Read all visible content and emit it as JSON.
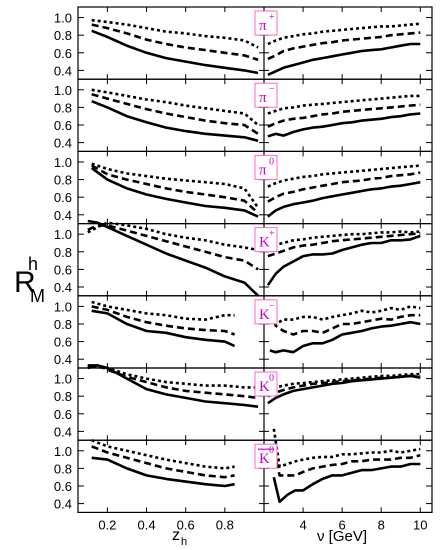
{
  "figure": {
    "ylabel_main": "R",
    "ylabel_sup": "h",
    "ylabel_sub": "M",
    "left_xlabel_main": "z",
    "left_xlabel_sub": "h",
    "right_xlabel": "ν [GeV]",
    "badge_color": "#cc00cc",
    "badge_border_color": "#ff66cc"
  },
  "chart_data": {
    "type": "line",
    "line_color": "#000000",
    "line_styles": [
      "solid",
      "dashed",
      "dotted"
    ],
    "left_axis": {
      "ticks": [
        0.2,
        0.4,
        0.6,
        0.8
      ],
      "tick_labels": [
        "0.2",
        "0.4",
        "0.6",
        "0.8"
      ],
      "xlim": [
        0.05,
        1.0
      ]
    },
    "right_axis": {
      "ticks": [
        4,
        6,
        8,
        10
      ],
      "tick_labels": [
        "4",
        "6",
        "8",
        "10"
      ],
      "xlim": [
        2.0,
        10.6
      ]
    },
    "y_ticks": [
      0.4,
      0.6,
      0.8,
      1.0
    ],
    "y_tick_labels": [
      "0.4",
      "0.6",
      "0.8",
      "1.0"
    ],
    "ylim": [
      0.3,
      1.12
    ],
    "panels": [
      {
        "hadron": "π",
        "hadron_sup": "+",
        "overline": false,
        "left": {
          "x": [
            0.12,
            0.2,
            0.3,
            0.4,
            0.5,
            0.6,
            0.7,
            0.8,
            0.9,
            0.97
          ],
          "series": [
            [
              0.85,
              0.78,
              0.68,
              0.6,
              0.54,
              0.5,
              0.46,
              0.43,
              0.4,
              0.37
            ],
            [
              0.92,
              0.88,
              0.82,
              0.75,
              0.7,
              0.66,
              0.63,
              0.6,
              0.57,
              0.52
            ],
            [
              0.97,
              0.95,
              0.92,
              0.88,
              0.84,
              0.82,
              0.79,
              0.77,
              0.74,
              0.66
            ]
          ]
        },
        "right": {
          "x": [
            2.2,
            2.6,
            3.0,
            3.5,
            4.0,
            4.5,
            5.0,
            5.5,
            6.0,
            6.5,
            7.0,
            7.5,
            8.0,
            8.5,
            9.0,
            9.5,
            10.0
          ],
          "series": [
            [
              0.35,
              0.39,
              0.43,
              0.46,
              0.49,
              0.52,
              0.54,
              0.56,
              0.58,
              0.6,
              0.62,
              0.63,
              0.64,
              0.66,
              0.68,
              0.7,
              0.7
            ],
            [
              0.53,
              0.57,
              0.62,
              0.65,
              0.67,
              0.69,
              0.71,
              0.72,
              0.74,
              0.75,
              0.76,
              0.77,
              0.78,
              0.8,
              0.81,
              0.82,
              0.83
            ],
            [
              0.7,
              0.74,
              0.77,
              0.79,
              0.81,
              0.82,
              0.84,
              0.85,
              0.86,
              0.87,
              0.88,
              0.89,
              0.9,
              0.9,
              0.91,
              0.92,
              0.93
            ]
          ]
        }
      },
      {
        "hadron": "π",
        "hadron_sup": "−",
        "overline": false,
        "left": {
          "x": [
            0.12,
            0.2,
            0.3,
            0.4,
            0.5,
            0.6,
            0.7,
            0.8,
            0.9,
            0.97
          ],
          "series": [
            [
              0.87,
              0.8,
              0.7,
              0.63,
              0.57,
              0.53,
              0.5,
              0.48,
              0.46,
              0.42
            ],
            [
              0.95,
              0.9,
              0.84,
              0.78,
              0.73,
              0.69,
              0.65,
              0.62,
              0.6,
              0.5
            ],
            [
              1.0,
              0.97,
              0.93,
              0.89,
              0.86,
              0.82,
              0.79,
              0.76,
              0.73,
              0.6
            ]
          ]
        },
        "right": {
          "x": [
            2.2,
            2.6,
            3.0,
            3.5,
            4.0,
            4.5,
            5.0,
            5.5,
            6.0,
            6.5,
            7.0,
            7.5,
            8.0,
            8.5,
            9.0,
            9.5,
            10.0
          ],
          "series": [
            [
              0.47,
              0.5,
              0.48,
              0.52,
              0.55,
              0.57,
              0.58,
              0.6,
              0.62,
              0.63,
              0.65,
              0.66,
              0.67,
              0.69,
              0.7,
              0.72,
              0.73
            ],
            [
              0.58,
              0.62,
              0.65,
              0.67,
              0.68,
              0.7,
              0.72,
              0.73,
              0.75,
              0.76,
              0.77,
              0.78,
              0.79,
              0.8,
              0.81,
              0.82,
              0.83
            ],
            [
              0.73,
              0.76,
              0.79,
              0.8,
              0.82,
              0.83,
              0.84,
              0.85,
              0.86,
              0.87,
              0.88,
              0.89,
              0.9,
              0.91,
              0.92,
              0.93,
              0.93
            ]
          ]
        }
      },
      {
        "hadron": "π",
        "hadron_sup": "0",
        "overline": false,
        "left": {
          "x": [
            0.12,
            0.2,
            0.3,
            0.4,
            0.5,
            0.6,
            0.7,
            0.8,
            0.9,
            0.97
          ],
          "series": [
            [
              0.93,
              0.8,
              0.7,
              0.63,
              0.58,
              0.54,
              0.5,
              0.48,
              0.45,
              0.38
            ],
            [
              0.96,
              0.86,
              0.8,
              0.75,
              0.7,
              0.66,
              0.63,
              0.6,
              0.56,
              0.42
            ],
            [
              0.98,
              0.92,
              0.87,
              0.84,
              0.81,
              0.79,
              0.77,
              0.75,
              0.7,
              0.48
            ]
          ]
        },
        "right": {
          "x": [
            2.2,
            2.6,
            3.0,
            3.5,
            4.0,
            4.5,
            5.0,
            5.5,
            6.0,
            6.5,
            7.0,
            7.5,
            8.0,
            8.5,
            9.0,
            9.5,
            10.0
          ],
          "series": [
            [
              0.38,
              0.45,
              0.49,
              0.52,
              0.54,
              0.56,
              0.59,
              0.61,
              0.63,
              0.65,
              0.67,
              0.69,
              0.7,
              0.72,
              0.73,
              0.75,
              0.77
            ],
            [
              0.55,
              0.6,
              0.64,
              0.66,
              0.69,
              0.71,
              0.73,
              0.75,
              0.77,
              0.78,
              0.79,
              0.81,
              0.82,
              0.84,
              0.85,
              0.86,
              0.88
            ],
            [
              0.72,
              0.76,
              0.79,
              0.81,
              0.83,
              0.84,
              0.86,
              0.87,
              0.88,
              0.89,
              0.9,
              0.91,
              0.92,
              0.93,
              0.94,
              0.95,
              0.96
            ]
          ]
        }
      },
      {
        "hadron": "K",
        "hadron_sup": "+",
        "overline": false,
        "left": {
          "x": [
            0.1,
            0.15,
            0.2,
            0.3,
            0.4,
            0.5,
            0.6,
            0.7,
            0.8,
            0.9,
            0.97
          ],
          "series": [
            [
              1.15,
              1.13,
              1.08,
              0.98,
              0.88,
              0.78,
              0.7,
              0.62,
              0.52,
              0.45,
              0.3
            ],
            [
              1.05,
              1.1,
              1.1,
              1.04,
              0.98,
              0.92,
              0.86,
              0.8,
              0.74,
              0.7,
              0.6
            ],
            [
              1.02,
              1.08,
              1.13,
              1.1,
              1.06,
              1.0,
              0.96,
              0.93,
              0.88,
              0.85,
              0.82
            ]
          ]
        },
        "right": {
          "x": [
            2.2,
            2.6,
            3.0,
            3.5,
            4.0,
            4.5,
            5.0,
            5.5,
            6.0,
            6.5,
            7.0,
            7.5,
            8.0,
            8.5,
            9.0,
            9.5,
            10.0
          ],
          "series": [
            [
              0.42,
              0.55,
              0.63,
              0.69,
              0.75,
              0.77,
              0.77,
              0.78,
              0.82,
              0.85,
              0.88,
              0.9,
              0.9,
              0.93,
              0.93,
              0.94,
              0.98
            ],
            [
              0.75,
              0.78,
              0.81,
              0.85,
              0.87,
              0.88,
              0.9,
              0.92,
              0.93,
              0.94,
              0.95,
              0.96,
              0.97,
              0.98,
              0.99,
              1.0,
              1.01
            ],
            [
              0.85,
              0.88,
              0.9,
              0.93,
              0.94,
              0.96,
              0.97,
              0.98,
              0.99,
              1.0,
              1.0,
              1.01,
              1.02,
              1.02,
              1.03,
              1.02,
              1.03
            ]
          ]
        }
      },
      {
        "hadron": "K",
        "hadron_sup": "−",
        "overline": false,
        "left": {
          "x": [
            0.12,
            0.2,
            0.3,
            0.4,
            0.5,
            0.6,
            0.7,
            0.8,
            0.85
          ],
          "series": [
            [
              0.95,
              0.92,
              0.8,
              0.72,
              0.7,
              0.65,
              0.62,
              0.6,
              0.55
            ],
            [
              1.0,
              0.96,
              0.88,
              0.82,
              0.78,
              0.75,
              0.73,
              0.72,
              0.68
            ],
            [
              1.05,
              1.0,
              0.96,
              0.92,
              0.9,
              0.86,
              0.85,
              0.9,
              0.9
            ]
          ]
        },
        "right": {
          "x": [
            2.3,
            2.6,
            3.0,
            3.5,
            4.0,
            4.5,
            5.0,
            5.5,
            6.0,
            6.5,
            7.0,
            7.5,
            8.0,
            8.5,
            9.0,
            9.5,
            10.0
          ],
          "series": [
            [
              0.5,
              0.48,
              0.5,
              0.48,
              0.55,
              0.58,
              0.58,
              0.62,
              0.68,
              0.7,
              0.72,
              0.75,
              0.77,
              0.78,
              0.8,
              0.82,
              0.8
            ],
            [
              0.95,
              0.78,
              0.72,
              0.68,
              0.72,
              0.72,
              0.7,
              0.75,
              0.8,
              0.8,
              0.82,
              0.84,
              0.86,
              0.85,
              0.88,
              0.9,
              0.9
            ],
            [
              1.02,
              0.8,
              0.85,
              0.85,
              0.88,
              0.88,
              0.85,
              0.88,
              0.9,
              0.92,
              0.95,
              0.93,
              0.95,
              0.98,
              0.96,
              1.0,
              0.98
            ]
          ]
        }
      },
      {
        "hadron": "K",
        "hadron_sup": "0",
        "overline": false,
        "left": {
          "x": [
            0.1,
            0.15,
            0.2,
            0.3,
            0.4,
            0.5,
            0.6,
            0.7,
            0.8,
            0.9,
            0.97
          ],
          "series": [
            [
              1.15,
              1.15,
              1.12,
              1.0,
              0.88,
              0.82,
              0.78,
              0.74,
              0.72,
              0.7,
              0.68
            ],
            [
              1.12,
              1.15,
              1.1,
              1.02,
              0.96,
              0.9,
              0.86,
              0.84,
              0.82,
              0.8,
              0.78
            ],
            [
              1.15,
              1.13,
              1.12,
              1.05,
              1.0,
              0.96,
              0.94,
              0.92,
              0.92,
              0.9,
              0.9
            ]
          ]
        },
        "right": {
          "x": [
            2.2,
            2.6,
            3.0,
            3.5,
            4.0,
            4.5,
            5.0,
            5.5,
            6.0,
            6.5,
            7.0,
            7.5,
            8.0,
            8.5,
            9.0,
            9.5,
            10.0
          ],
          "series": [
            [
              0.72,
              0.78,
              0.82,
              0.86,
              0.88,
              0.9,
              0.92,
              0.94,
              0.95,
              0.97,
              0.98,
              0.99,
              1.0,
              1.01,
              1.02,
              1.03,
              1.01
            ],
            [
              0.8,
              0.84,
              0.87,
              0.9,
              0.92,
              0.94,
              0.95,
              0.96,
              0.97,
              0.98,
              0.99,
              1.0,
              1.01,
              1.01,
              1.02,
              1.03,
              1.03
            ],
            [
              0.86,
              0.9,
              0.92,
              0.94,
              0.95,
              0.96,
              0.97,
              0.98,
              0.99,
              1.0,
              1.01,
              1.02,
              1.03,
              1.03,
              1.04,
              1.05,
              1.05
            ]
          ]
        }
      },
      {
        "hadron": "K",
        "hadron_sup": "0",
        "overline": true,
        "left": {
          "x": [
            0.12,
            0.2,
            0.3,
            0.4,
            0.5,
            0.6,
            0.7,
            0.8,
            0.85
          ],
          "series": [
            [
              0.92,
              0.9,
              0.8,
              0.72,
              0.68,
              0.65,
              0.62,
              0.6,
              0.62
            ],
            [
              1.05,
              0.98,
              0.92,
              0.86,
              0.8,
              0.76,
              0.72,
              0.7,
              0.72
            ],
            [
              1.12,
              1.05,
              1.0,
              0.95,
              0.9,
              0.86,
              0.82,
              0.8,
              0.82
            ]
          ]
        },
        "right": {
          "x": [
            2.5,
            2.8,
            3.2,
            3.6,
            4.0,
            4.5,
            5.0,
            5.5,
            6.0,
            6.5,
            7.0,
            7.5,
            8.0,
            8.5,
            9.0,
            9.5,
            10.0
          ],
          "series": [
            [
              0.7,
              0.42,
              0.5,
              0.55,
              0.55,
              0.62,
              0.68,
              0.72,
              0.72,
              0.75,
              0.78,
              0.78,
              0.8,
              0.82,
              0.82,
              0.85,
              0.85
            ],
            [
              1.0,
              0.72,
              0.72,
              0.72,
              0.76,
              0.8,
              0.82,
              0.84,
              0.85,
              0.88,
              0.88,
              0.9,
              0.9,
              0.9,
              0.92,
              0.92,
              0.95
            ],
            [
              1.25,
              0.82,
              0.85,
              0.88,
              0.9,
              0.92,
              0.93,
              0.93,
              0.96,
              0.96,
              0.97,
              0.98,
              0.98,
              1.0,
              0.98,
              1.0,
              1.02
            ]
          ]
        }
      }
    ]
  }
}
